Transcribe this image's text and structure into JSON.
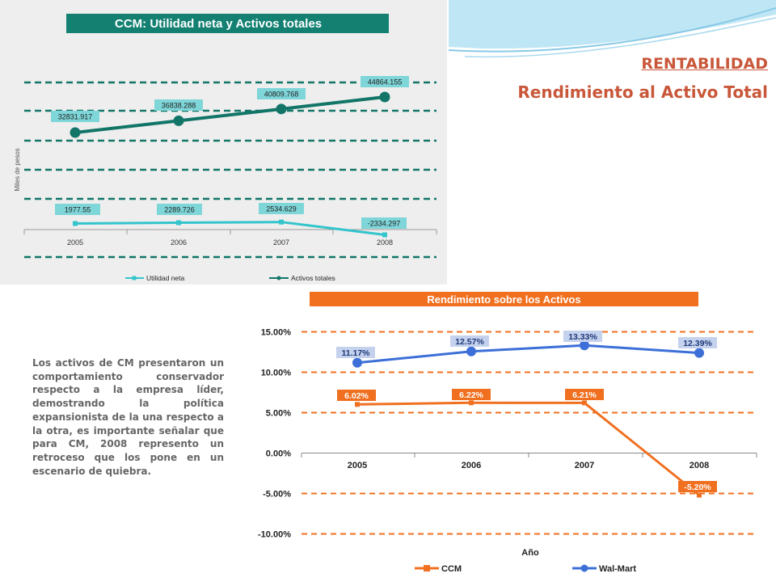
{
  "slide": {
    "title": "RENTABILIDAD",
    "subtitle": "Rendimiento al Activo Total",
    "paragraph": "Los activos de CM presentaron un comportamiento conservador respecto a la empresa líder, demostrando la política expansionista de la una respecto a la otra, es importante señalar que para CM, 2008 represento un retroceso que los pone en un escenario de quiebra."
  },
  "chart_data": [
    {
      "type": "line",
      "title": "CCM: Utilidad neta y Activos totales",
      "ylabel": "Miles de pesos",
      "xlabel": "",
      "categories": [
        "2005",
        "2006",
        "2007",
        "2008"
      ],
      "series": [
        {
          "name": "Utilidad neta",
          "values": [
            1977.55,
            2289.726,
            2534.629,
            -2334.297
          ],
          "labels": [
            "1977.55",
            "2289.726",
            "2534.629",
            "-2334.297"
          ],
          "color": "#33c4cc"
        },
        {
          "name": "Activos totales",
          "values": [
            32831.917,
            36838.288,
            40809.768,
            44864.155
          ],
          "labels": [
            "32831.917",
            "36838.288",
            "40809.768",
            "44864.155"
          ],
          "color": "#127568"
        }
      ],
      "grid": "dashed",
      "legend": "bottom"
    },
    {
      "type": "line",
      "title": "Rendimiento sobre los Activos",
      "xlabel": "Año",
      "ylabel": "",
      "categories": [
        "2005",
        "2006",
        "2007",
        "2008"
      ],
      "ylim": [
        -10,
        15
      ],
      "yticks": [
        "15.00%",
        "10.00%",
        "5.00%",
        "0.00%",
        "-5.00%",
        "-10.00%"
      ],
      "series": [
        {
          "name": "CCM",
          "values": [
            6.02,
            6.22,
            6.21,
            -5.2
          ],
          "labels": [
            "6.02%",
            "6.22%",
            "6.21%",
            "-5.20%"
          ],
          "color": "#f07020"
        },
        {
          "name": "Wal-Mart",
          "values": [
            11.17,
            12.57,
            13.33,
            12.39
          ],
          "labels": [
            "11.17%",
            "12.57%",
            "13.33%",
            "12.39%"
          ],
          "color": "#3c6fd8"
        }
      ],
      "grid": "dashed",
      "legend": "bottom"
    }
  ],
  "colors": {
    "teal_banner": "#138072",
    "orange_banner": "#f07020",
    "title_text": "#c9573a"
  }
}
